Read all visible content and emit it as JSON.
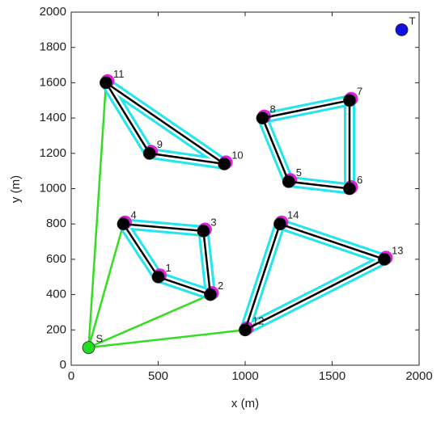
{
  "chart_data": {
    "type": "route",
    "xlabel": "x (m)",
    "ylabel": "y (m)",
    "labels": [
      "1",
      "2",
      "3",
      "4",
      "5",
      "6",
      "7",
      "8",
      "9",
      "10",
      "11",
      "12",
      "13",
      "14",
      "S",
      "T"
    ],
    "x": [
      500,
      800,
      760,
      300,
      1250,
      1600,
      1600,
      1100,
      450,
      880,
      200,
      1000,
      1800,
      1200,
      100,
      1900
    ],
    "y": [
      500,
      400,
      760,
      800,
      1040,
      1000,
      1500,
      1400,
      1200,
      1140,
      1600,
      200,
      600,
      800,
      100,
      1900
    ],
    "point_colors": [
      "#000000",
      "#000000",
      "#000000",
      "#000000",
      "#000000",
      "#000000",
      "#000000",
      "#000000",
      "#000000",
      "#000000",
      "#000000",
      "#000000",
      "#000000",
      "#000000",
      "#22dd22",
      "#1010e0"
    ],
    "tours": [
      [
        10,
        8,
        9
      ],
      [
        7,
        4,
        5,
        6
      ],
      [
        3,
        0,
        1,
        2
      ],
      [
        11,
        13,
        12
      ]
    ],
    "links": [
      [
        14,
        10
      ],
      [
        14,
        3
      ],
      [
        14,
        1
      ],
      [
        14,
        11
      ]
    ],
    "tour_color": "#000000",
    "buffer_color": "#22e5ee",
    "vertex_color": "#e020e0",
    "link_color": "#33dd22",
    "xlim": [
      0,
      2000
    ],
    "xticks": [
      0,
      500,
      1000,
      1500,
      2000
    ],
    "ylim": [
      0,
      2000
    ],
    "yticks": [
      0,
      200,
      400,
      600,
      800,
      1000,
      1200,
      1400,
      1600,
      1800,
      2000
    ]
  }
}
